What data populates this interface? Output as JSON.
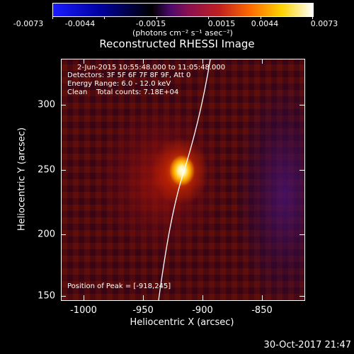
{
  "colorbar": {
    "ticks": [
      "-0.0073",
      "-0.0044",
      "-0.0015",
      "0.0015",
      "0.0044",
      "0.0073"
    ],
    "units": "(photons cm⁻² s⁻¹ asec⁻²)",
    "colors": [
      "#1a1cff",
      "#0000a0",
      "#000000",
      "#8a1050",
      "#c02020",
      "#ff6a00",
      "#ffd400",
      "#ffffff"
    ]
  },
  "title": "Reconstructed RHESSI Image",
  "info": {
    "time_range": "2-Jun-2015 10:55:48.000 to 11:05:48.000",
    "detectors": "Detectors: 3F 5F 6F 7F 8F 9F, Att 0",
    "energy": "Energy Range: 6.0 - 12.0 keV",
    "clean": "Clean    Total counts: 7.18E+04",
    "peak": "Position of Peak = [-918,245]"
  },
  "axes": {
    "xlabel": "Heliocentric X (arcsec)",
    "ylabel": "Heliocentric Y (arcsec)",
    "xticks": [
      "-1000",
      "-950",
      "-900",
      "-850"
    ],
    "yticks": [
      "300",
      "250",
      "200",
      "150"
    ]
  },
  "timestamp": "30-Oct-2017 21:47"
}
